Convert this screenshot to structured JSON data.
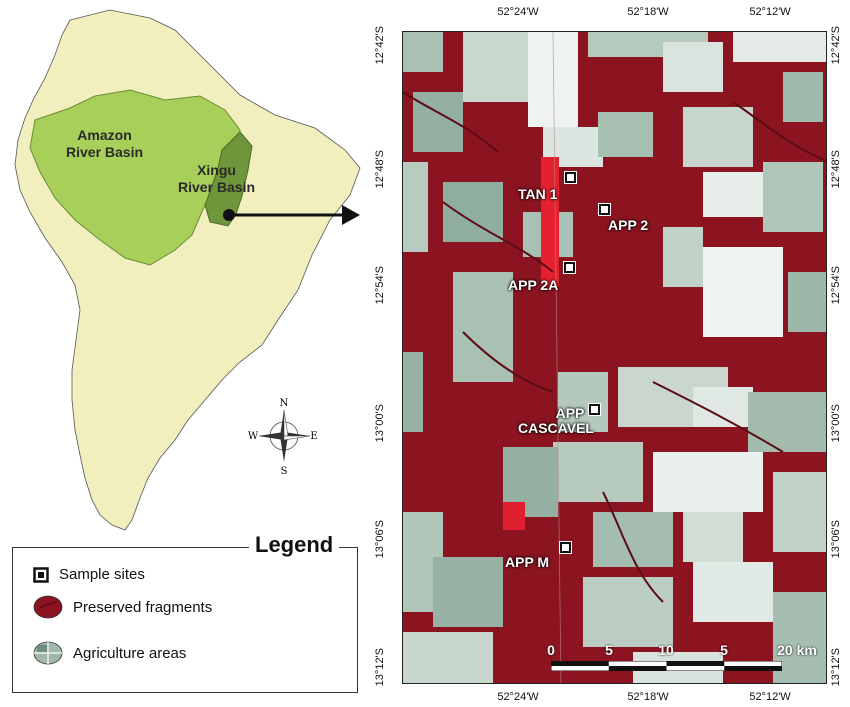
{
  "colors": {
    "land": "#f1efbe",
    "amazon": "#a8cf5a",
    "xingu": "#6e963a",
    "preserved": "#8b1420",
    "agriculture": "#b9ccc1",
    "bare": "#e9eeec"
  },
  "left_map": {
    "amazon_label": [
      "Amazon",
      "River Basin"
    ],
    "xingu_label": [
      "Xingu",
      "River Basin"
    ],
    "compass": {
      "n": "N",
      "s": "S",
      "e": "E",
      "w": "W"
    }
  },
  "satellite": {
    "top_lon": [
      "52°24'W",
      "52°18'W",
      "52°12'W"
    ],
    "bottom_lon": [
      "52°24'W",
      "52°18'W",
      "52°12'W"
    ],
    "left_lat": [
      "12°42'S",
      "12°48'S",
      "12°54'S",
      "13°00'S",
      "13°06'S",
      "13°12'S"
    ],
    "right_lat": [
      "12°42'S",
      "12°48'S",
      "12°54'S",
      "13°00'S",
      "13°06'S",
      "13°12'S"
    ],
    "sites": [
      {
        "label": "TAN 1"
      },
      {
        "label": "APP 2"
      },
      {
        "label": "APP 2A"
      },
      {
        "label": "APP CASCAVEL",
        "line1": "APP",
        "line2": "CASCAVEL"
      },
      {
        "label": "APP M"
      }
    ],
    "scale": {
      "ticks": [
        "0",
        "5",
        "10",
        "5",
        "20 km"
      ]
    }
  },
  "legend": {
    "title": "Legend",
    "items": [
      {
        "label": "Sample sites"
      },
      {
        "label": "Preserved fragments"
      },
      {
        "label": "Agriculture areas"
      }
    ]
  }
}
